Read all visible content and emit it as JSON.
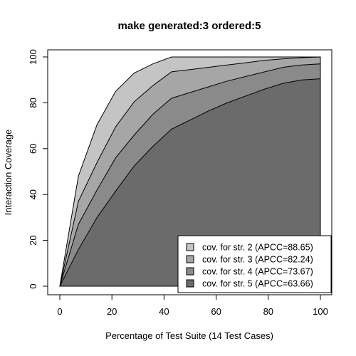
{
  "chart_data": {
    "type": "area",
    "title": "make generated:3 ordered:5",
    "xlabel": "Percentage of Test Suite (14 Test Cases)",
    "ylabel": "Interaction Coverage",
    "xlim": [
      0,
      100
    ],
    "ylim": [
      0,
      100
    ],
    "xticks": [
      0,
      20,
      40,
      60,
      80,
      100
    ],
    "yticks": [
      0,
      20,
      40,
      60,
      80,
      100
    ],
    "x": [
      0,
      7.14,
      14.29,
      21.43,
      28.57,
      35.71,
      42.86,
      50,
      57.14,
      64.29,
      71.43,
      78.57,
      85.71,
      92.86,
      100
    ],
    "series": [
      {
        "name": "cov. for str. 2 (APCC=88.65)",
        "color": "#c4c4c4",
        "values": [
          0,
          48,
          70.5,
          85,
          93,
          97,
          100,
          100,
          100,
          100,
          100,
          100,
          100,
          100,
          100
        ]
      },
      {
        "name": "cov. for str. 3 (APCC=82.24)",
        "color": "#a6a6a6",
        "values": [
          0,
          37,
          54,
          69.5,
          80.5,
          87.5,
          93.5,
          94.5,
          95.5,
          96.5,
          97.5,
          98.5,
          99.2,
          99.7,
          100
        ]
      },
      {
        "name": "cov. for str. 4 (APCC=73.67)",
        "color": "#8a8a8a",
        "values": [
          0,
          27,
          42,
          56,
          66,
          75,
          82,
          84.5,
          87,
          89.5,
          91.5,
          93.5,
          95.5,
          96.5,
          97
        ]
      },
      {
        "name": "cov. for str. 5 (APCC=63.66)",
        "color": "#6b6b6b",
        "values": [
          0,
          16,
          30,
          41.5,
          52.5,
          61,
          68.5,
          72.5,
          76.5,
          80,
          83,
          86,
          88.5,
          90,
          90.5
        ]
      }
    ],
    "legend": {
      "placement": "bottom-right"
    },
    "grid": false
  }
}
